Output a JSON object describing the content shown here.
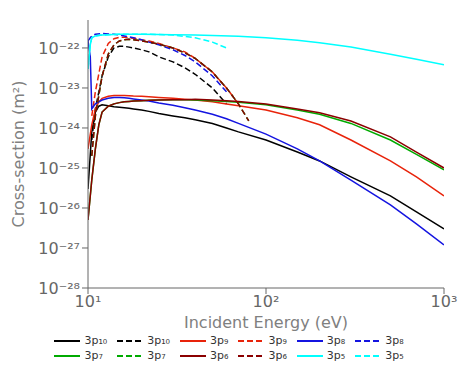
{
  "chart_data": {
    "type": "line",
    "xlabel": "Incident Energy (eV)",
    "ylabel": "Cross-section (m²)",
    "log": true,
    "xlim": [
      10,
      1000
    ],
    "ylim": [
      1e-28,
      5e-22
    ],
    "xticks": [
      {
        "value": 10,
        "label": "10¹"
      },
      {
        "value": 100,
        "label": "10²"
      },
      {
        "value": 1000,
        "label": "10³"
      }
    ],
    "yticks": [
      {
        "value": 1e-28,
        "label": "10⁻²⁸"
      },
      {
        "value": 1e-27,
        "label": "10⁻²⁷"
      },
      {
        "value": 1e-26,
        "label": "10⁻²⁶"
      },
      {
        "value": 1e-25,
        "label": "10⁻²⁵"
      },
      {
        "value": 1e-24,
        "label": "10⁻²⁴"
      },
      {
        "value": 1e-23,
        "label": "10⁻²³"
      },
      {
        "value": 1e-22,
        "label": "10⁻²²"
      }
    ],
    "grid": false,
    "legend": "bottom",
    "series": [
      {
        "name": "3p₁₀",
        "color": "black",
        "line_style": "solid",
        "x": [
          10.0,
          10.5,
          11.0,
          11.5,
          12.0,
          13.0,
          14.0,
          15.0,
          16.0,
          17.0,
          18.0,
          20.0,
          22.0,
          25.0,
          30.0,
          35.0,
          40.0,
          50.0,
          60.0,
          70.0,
          100.0,
          150.0,
          200.0,
          300.0,
          500.0,
          700.0,
          1000.0
        ],
        "values": [
          3e-26,
          8e-25,
          2.5e-24,
          3.5e-24,
          3.8e-24,
          3.6e-24,
          3.4e-24,
          3.3e-24,
          3.2e-24,
          3.1e-24,
          3e-24,
          2.8e-24,
          2.6e-24,
          2.3e-24,
          2e-24,
          1.8e-24,
          1.6e-24,
          1.3e-24,
          1e-24,
          8e-25,
          5e-25,
          2.5e-25,
          1.5e-25,
          6e-26,
          2e-26,
          8e-27,
          3e-27
        ]
      },
      {
        "name": "3p₁₀",
        "color": "black",
        "line_style": "dashed",
        "x": [
          10.5,
          11.0,
          12.0,
          13.0,
          14.0,
          15.0,
          16.0,
          17.0,
          18.0,
          20.0,
          22.0,
          25.0,
          30.0,
          35.0,
          40.0,
          50.0,
          60.0
        ],
        "values": [
          5e-25,
          3e-24,
          2e-23,
          6e-23,
          1e-22,
          1.1e-22,
          1.1e-22,
          1.05e-22,
          1e-22,
          9e-23,
          8e-23,
          6e-23,
          4.5e-23,
          3.2e-23,
          2.2e-23,
          1e-23,
          4e-24
        ]
      },
      {
        "name": "3p₉",
        "color": "#e8230a",
        "line_style": "solid",
        "x": [
          10.0,
          10.5,
          11.0,
          11.5,
          12.0,
          13.0,
          14.0,
          15.0,
          16.0,
          17.0,
          18.0,
          20.0,
          22.0,
          25.0,
          30.0,
          35.0,
          40.0,
          50.0,
          60.0,
          70.0,
          100.0,
          150.0,
          200.0,
          300.0,
          500.0,
          700.0,
          1000.0
        ],
        "values": [
          3e-25,
          1.2e-24,
          3e-24,
          4.5e-24,
          5.5e-24,
          6.2e-24,
          6.5e-24,
          6.5e-24,
          6.5e-24,
          6.4e-24,
          6.3e-24,
          6.2e-24,
          6e-24,
          5.8e-24,
          5.5e-24,
          5.2e-24,
          5e-24,
          4.5e-24,
          4e-24,
          3.6e-24,
          2.8e-24,
          1.8e-24,
          1.2e-24,
          5e-25,
          1.5e-25,
          6e-26,
          2e-26
        ]
      },
      {
        "name": "3p₉",
        "color": "#e8230a",
        "line_style": "dashed",
        "x": [
          10.5,
          11.0,
          12.0,
          13.0,
          14.0,
          15.0,
          16.0,
          17.0,
          18.0,
          20.0,
          22.0,
          25.0,
          30.0,
          35.0,
          40.0,
          50.0,
          60.0,
          70.0
        ],
        "values": [
          2e-24,
          8e-24,
          6e-23,
          1.3e-22,
          1.7e-22,
          1.85e-22,
          1.85e-22,
          1.8e-22,
          1.75e-22,
          1.6e-22,
          1.5e-22,
          1.3e-22,
          1e-22,
          8e-23,
          5.5e-23,
          2.5e-23,
          1e-23,
          4e-24
        ]
      },
      {
        "name": "3p₈",
        "color": "#1414e0",
        "line_style": "solid",
        "x": [
          10.0,
          10.3,
          10.5,
          11.0,
          11.5,
          12.0,
          13.0,
          14.0,
          15.0,
          16.0,
          17.0,
          18.0,
          20.0,
          22.0,
          25.0,
          30.0,
          35.0,
          40.0,
          50.0,
          60.0,
          70.0,
          100.0,
          150.0,
          200.0,
          300.0,
          500.0,
          700.0,
          1000.0
        ],
        "values": [
          1.5e-22,
          6e-23,
          3e-24,
          4e-24,
          4.5e-24,
          5e-24,
          5.5e-24,
          5.8e-24,
          5.8e-24,
          5.7e-24,
          5.5e-24,
          5.3e-24,
          5e-24,
          4.7e-24,
          4.2e-24,
          3.7e-24,
          3.2e-24,
          2.8e-24,
          2.2e-24,
          1.7e-24,
          1.3e-24,
          7e-25,
          3e-25,
          1.5e-25,
          5e-26,
          1.2e-26,
          4e-27,
          1.2e-27
        ]
      },
      {
        "name": "3p₈",
        "color": "#1414e0",
        "line_style": "dashed",
        "x": [
          10.0,
          10.3,
          10.5,
          11.0,
          12.0,
          13.0,
          14.0,
          15.0,
          16.0,
          17.0,
          18.0,
          20.0,
          22.0,
          25.0,
          30.0,
          35.0,
          40.0,
          50.0,
          60.0
        ],
        "values": [
          1.5e-22,
          1.8e-22,
          2e-22,
          2.2e-22,
          2.3e-22,
          2.25e-22,
          2.2e-22,
          2.1e-22,
          2e-22,
          1.9e-22,
          1.8e-22,
          1.6e-22,
          1.4e-22,
          1.2e-22,
          9e-23,
          6.5e-23,
          4.5e-23,
          2e-23,
          8e-24
        ]
      },
      {
        "name": "3p₇",
        "color": "#00aa00",
        "line_style": "solid",
        "x": [
          10.0,
          10.5,
          11.0,
          11.5,
          12.0,
          13.0,
          14.0,
          15.0,
          16.0,
          17.0,
          18.0,
          20.0,
          22.0,
          25.0,
          30.0,
          35.0,
          40.0,
          50.0,
          60.0,
          70.0,
          100.0,
          150.0,
          200.0,
          300.0,
          500.0,
          700.0,
          1000.0
        ],
        "values": [
          5e-27,
          5e-26,
          3e-25,
          1.2e-24,
          2.5e-24,
          3.5e-24,
          4e-24,
          4.3e-24,
          4.5e-24,
          4.6e-24,
          4.7e-24,
          4.8e-24,
          4.9e-24,
          5e-24,
          5.1e-24,
          5.1e-24,
          5e-24,
          4.8e-24,
          4.6e-24,
          4.4e-24,
          3.8e-24,
          2.8e-24,
          2.2e-24,
          1.3e-24,
          5e-25,
          2.2e-25,
          9e-26
        ]
      },
      {
        "name": "3p₇",
        "color": "#00aa00",
        "line_style": "dashed",
        "x": [
          10.5,
          11.0,
          12.0,
          13.0,
          14.0,
          15.0,
          16.0,
          17.0,
          18.0,
          20.0,
          22.0,
          25.0,
          30.0,
          35.0,
          40.0,
          50.0,
          60.0,
          70.0,
          80.0
        ],
        "values": [
          2e-25,
          2e-24,
          2e-23,
          7e-23,
          1.2e-22,
          1.5e-22,
          1.6e-22,
          1.65e-22,
          1.6e-22,
          1.5e-22,
          1.4e-22,
          1.25e-22,
          1e-22,
          7.5e-23,
          5.5e-23,
          2.5e-23,
          1e-23,
          4e-24,
          1.5e-24
        ]
      },
      {
        "name": "3p₆",
        "color": "#8B0000",
        "line_style": "solid",
        "x": [
          10.0,
          10.5,
          11.0,
          11.5,
          12.0,
          13.0,
          14.0,
          15.0,
          16.0,
          17.0,
          18.0,
          20.0,
          22.0,
          25.0,
          30.0,
          35.0,
          40.0,
          50.0,
          60.0,
          70.0,
          100.0,
          150.0,
          200.0,
          300.0,
          500.0,
          700.0,
          1000.0
        ],
        "values": [
          5e-27,
          5e-26,
          3e-25,
          1.2e-24,
          2.5e-24,
          3.5e-24,
          4e-24,
          4.3e-24,
          4.5e-24,
          4.6e-24,
          4.7e-24,
          4.8e-24,
          4.9e-24,
          5e-24,
          5.1e-24,
          5.1e-24,
          5.2e-24,
          5e-24,
          4.8e-24,
          4.6e-24,
          4e-24,
          3e-24,
          2.4e-24,
          1.5e-24,
          6e-25,
          2.5e-25,
          1e-25
        ]
      },
      {
        "name": "3p₆",
        "color": "#8B0000",
        "line_style": "dashed",
        "x": [
          10.5,
          11.0,
          12.0,
          13.0,
          14.0,
          15.0,
          16.0,
          17.0,
          18.0,
          20.0,
          22.0,
          25.0,
          30.0,
          35.0,
          40.0,
          50.0,
          60.0,
          70.0,
          80.0
        ],
        "values": [
          2e-25,
          2e-24,
          2e-23,
          7e-23,
          1.2e-22,
          1.5e-22,
          1.6e-22,
          1.65e-22,
          1.6e-22,
          1.5e-22,
          1.4e-22,
          1.25e-22,
          1e-22,
          7.5e-23,
          5.5e-23,
          2.5e-23,
          1e-23,
          4e-24,
          1.5e-24
        ]
      },
      {
        "name": "3p₅",
        "color": "cyan",
        "line_style": "solid",
        "x": [
          10.0,
          10.3,
          10.5,
          11.0,
          12.0,
          13.0,
          14.0,
          15.0,
          16.0,
          17.0,
          18.0,
          20.0,
          25.0,
          30.0,
          40.0,
          50.0,
          70.0,
          100.0,
          150.0,
          200.0,
          300.0,
          500.0,
          700.0,
          1000.0
        ],
        "values": [
          3e-23,
          1.2e-22,
          1.8e-22,
          2e-22,
          2.1e-22,
          2.15e-22,
          2.18e-22,
          2.2e-22,
          2.2e-22,
          2.2e-22,
          2.2e-22,
          2.2e-22,
          2.18e-22,
          2.15e-22,
          2.1e-22,
          2.05e-22,
          1.95e-22,
          1.8e-22,
          1.55e-22,
          1.35e-22,
          1.05e-22,
          7e-23,
          5.2e-23,
          3.8e-23
        ]
      },
      {
        "name": "3p₅",
        "color": "cyan",
        "line_style": "dashed",
        "x": [
          10.0,
          10.3,
          10.5,
          11.0,
          12.0,
          13.0,
          14.0,
          15.0,
          16.0,
          17.0,
          18.0,
          20.0,
          25.0,
          30.0,
          40.0,
          50.0,
          60.0
        ],
        "values": [
          3e-23,
          1.2e-22,
          1.8e-22,
          2e-22,
          2.1e-22,
          2.15e-22,
          2.18e-22,
          2.2e-22,
          2.2e-22,
          2.2e-22,
          2.2e-22,
          2.2e-22,
          2.18e-22,
          2.1e-22,
          1.8e-22,
          1.4e-22,
          1e-22
        ]
      }
    ]
  }
}
